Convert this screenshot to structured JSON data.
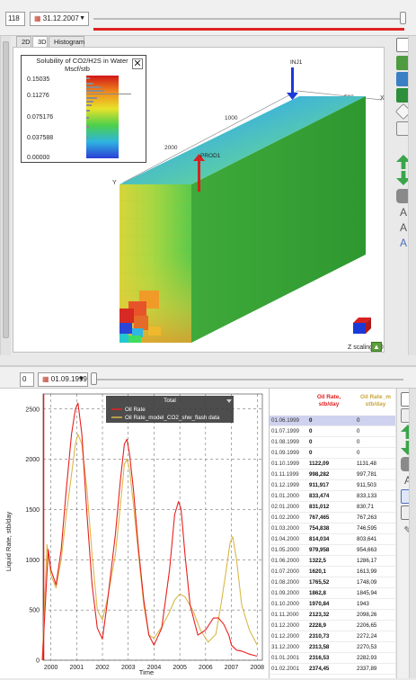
{
  "top": {
    "step_value": "118",
    "date_value": "31.12.2007",
    "tabs": [
      "2D",
      "3D",
      "Histogram"
    ],
    "legend": {
      "title": "Solubility of CO2/H2S in Water",
      "unit": "Mscf/stb",
      "ticks": [
        "0.15035",
        "0.11276",
        "0.075176",
        "0.037588",
        "0.00000"
      ]
    },
    "wells": {
      "injector": "INJ1",
      "producer": "PROD1"
    },
    "axis_labels": {
      "x": "X",
      "y": "Y",
      "z": "Z"
    },
    "axis_ticks": [
      "500",
      "1000",
      "2000"
    ],
    "zscaling_label": "Z scaling: 10"
  },
  "bottom": {
    "step_value": "0",
    "date_value": "01.09.1999",
    "chart_data": {
      "type": "line",
      "title": "Total",
      "xlabel": "Time",
      "ylabel": "Liquid Rate, stb/day",
      "xlim": [
        1999.7,
        2008.2
      ],
      "ylim": [
        0,
        2650
      ],
      "x_ticks": [
        "2000",
        "2001",
        "2002",
        "2003",
        "2004",
        "2005",
        "2006",
        "2007",
        "2008"
      ],
      "y_ticks": [
        "0",
        "500",
        "1000",
        "1500",
        "2000",
        "2500"
      ],
      "legend_position": "top-center",
      "series": [
        {
          "name": "Oil Rate",
          "color": "#e8201f",
          "x": [
            1999.67,
            1999.9,
            2000.0,
            2000.2,
            2000.4,
            2000.6,
            2000.8,
            2000.95,
            2001.05,
            2001.2,
            2001.4,
            2001.6,
            2001.8,
            2002.0,
            2002.2,
            2002.5,
            2002.7,
            2002.85,
            2002.95,
            2003.05,
            2003.2,
            2003.4,
            2003.6,
            2003.8,
            2004.0,
            2004.3,
            2004.6,
            2004.8,
            2004.95,
            2005.05,
            2005.2,
            2005.4,
            2005.7,
            2006.0,
            2006.3,
            2006.5,
            2006.7,
            2006.9,
            2007.0,
            2007.2,
            2007.4,
            2007.7,
            2008.0
          ],
          "values": [
            0,
            1100,
            900,
            750,
            1100,
            1700,
            2250,
            2500,
            2560,
            2250,
            1450,
            750,
            320,
            210,
            600,
            1250,
            1800,
            2150,
            2200,
            2050,
            1700,
            1100,
            600,
            250,
            150,
            320,
            900,
            1450,
            1580,
            1500,
            1050,
            550,
            250,
            300,
            420,
            420,
            360,
            250,
            150,
            100,
            90,
            60,
            40
          ]
        },
        {
          "name": "Oil Rate_model_CO2_shw_flash data",
          "color": "#d9b84a",
          "x": [
            1999.67,
            1999.85,
            2000.0,
            2000.2,
            2000.4,
            2000.6,
            2000.8,
            2000.95,
            2001.05,
            2001.2,
            2001.4,
            2001.6,
            2001.8,
            2002.0,
            2002.2,
            2002.5,
            2002.7,
            2002.85,
            2002.95,
            2003.05,
            2003.2,
            2003.4,
            2003.6,
            2003.8,
            2004.0,
            2004.3,
            2004.6,
            2004.8,
            2005.0,
            2005.2,
            2005.5,
            2005.8,
            2006.1,
            2006.4,
            2006.6,
            2006.8,
            2006.95,
            2007.05,
            2007.2,
            2007.4,
            2007.7,
            2008.0
          ],
          "values": [
            0,
            1150,
            850,
            720,
            1000,
            1450,
            1850,
            2150,
            2250,
            2150,
            1700,
            1050,
            500,
            400,
            620,
            1050,
            1550,
            1950,
            2000,
            1900,
            1550,
            1050,
            550,
            250,
            220,
            330,
            480,
            600,
            660,
            630,
            500,
            300,
            180,
            260,
            560,
            900,
            1170,
            1230,
            1000,
            550,
            300,
            150
          ]
        }
      ]
    },
    "table": {
      "headers": [
        "Oil Rate, stb/day",
        "Oil Rate_m stb/day"
      ],
      "rows": [
        [
          "01.06.1999",
          "0",
          "0"
        ],
        [
          "01.07.1999",
          "0",
          "0"
        ],
        [
          "01.08.1999",
          "0",
          "0"
        ],
        [
          "01.09.1999",
          "0",
          "0"
        ],
        [
          "01.10.1999",
          "1122,09",
          "1131,48"
        ],
        [
          "01.11.1999",
          "998,282",
          "997,781"
        ],
        [
          "01.12.1999",
          "911,917",
          "911,503"
        ],
        [
          "01.01.2000",
          "833,474",
          "833,133"
        ],
        [
          "02.01.2000",
          "831,012",
          "830,71"
        ],
        [
          "01.02.2000",
          "767,465",
          "767,263"
        ],
        [
          "01.03.2000",
          "754,838",
          "746,595"
        ],
        [
          "01.04.2000",
          "814,034",
          "803,641"
        ],
        [
          "01.05.2000",
          "979,958",
          "954,663"
        ],
        [
          "01.06.2000",
          "1322,5",
          "1286,17"
        ],
        [
          "01.07.2000",
          "1620,1",
          "1613,99"
        ],
        [
          "01.08.2000",
          "1765,52",
          "1748,09"
        ],
        [
          "01.09.2000",
          "1862,8",
          "1845,94"
        ],
        [
          "01.10.2000",
          "1970,84",
          "1943"
        ],
        [
          "01.11.2000",
          "2123,32",
          "2098,26"
        ],
        [
          "01.12.2000",
          "2228,9",
          "2206,65"
        ],
        [
          "01.12.2000",
          "2310,73",
          "2272,24"
        ],
        [
          "31.12.2000",
          "2313,58",
          "2270,53"
        ],
        [
          "01.01.2001",
          "2316,53",
          "2282,93"
        ],
        [
          "01.02.2001",
          "2374,45",
          "2337,89"
        ]
      ]
    }
  }
}
